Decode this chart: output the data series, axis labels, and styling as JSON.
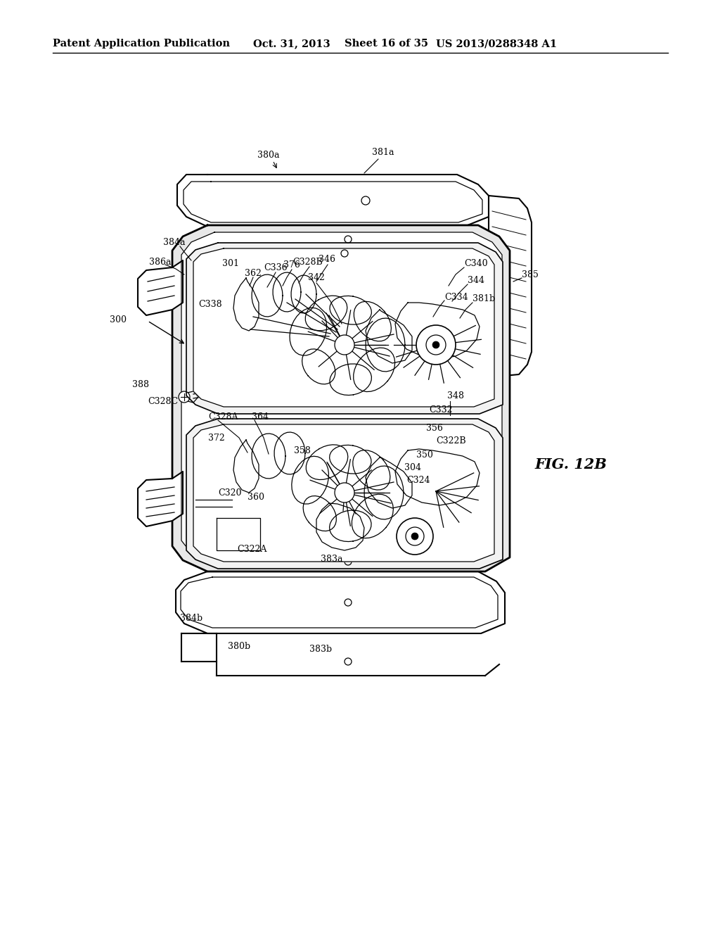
{
  "bg_color": "#ffffff",
  "header_text": "Patent Application Publication",
  "header_date": "Oct. 31, 2013",
  "header_sheet": "Sheet 16 of 35",
  "header_patent": "US 2013/0288348 A1",
  "fig_label": "FIG. 12B",
  "title_fontsize": 10.5,
  "label_fontsize": 9.0,
  "fig_label_fontsize": 15
}
